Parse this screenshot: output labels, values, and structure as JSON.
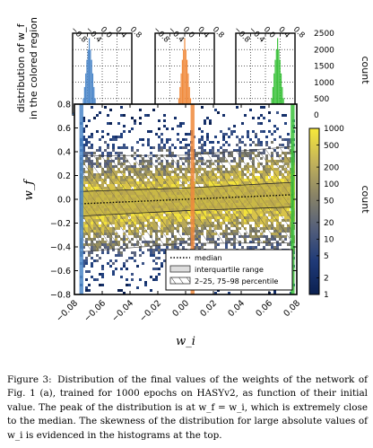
{
  "figure": {
    "main_plot": {
      "xlabel": "w_i",
      "ylabel": "w_f",
      "xlim": [
        -0.08,
        0.08
      ],
      "ylim": [
        -0.8,
        0.8
      ],
      "xticks": [
        -0.08,
        -0.06,
        -0.04,
        -0.02,
        0.0,
        0.02,
        0.04,
        0.06,
        0.08
      ],
      "xtick_labels": [
        "−0.08",
        "−0.06",
        "−0.04",
        "−0.02",
        "0.00",
        "0.02",
        "0.04",
        "0.06",
        "0.08"
      ],
      "yticks": [
        -0.8,
        -0.6,
        -0.4,
        -0.2,
        0.0,
        0.2,
        0.4,
        0.6,
        0.8
      ],
      "ytick_labels": [
        "−0.8",
        "−0.6",
        "−0.4",
        "−0.2",
        "0.0",
        "0.2",
        "0.4",
        "0.6",
        "0.8"
      ],
      "colored_regions_wi": [
        -0.075,
        0.005,
        0.077
      ],
      "region_colors": [
        "#4a86c8",
        "#f08a3c",
        "#3cc23c"
      ]
    },
    "colorbar": {
      "label": "count",
      "ticks": [
        1,
        2,
        5,
        10,
        20,
        50,
        100,
        200,
        500,
        1000
      ],
      "tick_labels": [
        "1",
        "2",
        "5",
        "10",
        "20",
        "50",
        "100",
        "200",
        "500",
        "1000"
      ]
    },
    "legend": {
      "items": [
        "median",
        "interquartile range",
        "2–25, 75–98 percentile"
      ]
    },
    "histograms": {
      "ylabel_line1": "distribution of w_f",
      "ylabel_line2": "in the colored region",
      "right_label": "count",
      "yticks": [
        0,
        500,
        1000,
        1500,
        2000,
        2500
      ],
      "ytick_labels": [
        "0",
        "500",
        "1000",
        "1500",
        "2000",
        "2500"
      ],
      "xtick_labels": [
        "−0.8",
        "−0.4",
        "0.0",
        "0.4",
        "0.8"
      ],
      "panels": [
        {
          "wi": -0.075,
          "color": "#4a86c8",
          "median": -0.35
        },
        {
          "wi": 0.005,
          "color": "#f08a3c",
          "median": 0.0
        },
        {
          "wi": 0.077,
          "color": "#3cc23c",
          "median": 0.33
        }
      ]
    }
  },
  "caption": {
    "lead": "Figure 3:",
    "text": "Distribution of the final values of the weights of the network of Fig. 1 (a), trained for 1000 epochs on HASYv2, as function of their initial value. The peak of the distribution is at w_f = w_i, which is extremely close to the median. The skewness of the distribution for large absolute values of w_i is evidenced in the histograms at the top."
  }
}
